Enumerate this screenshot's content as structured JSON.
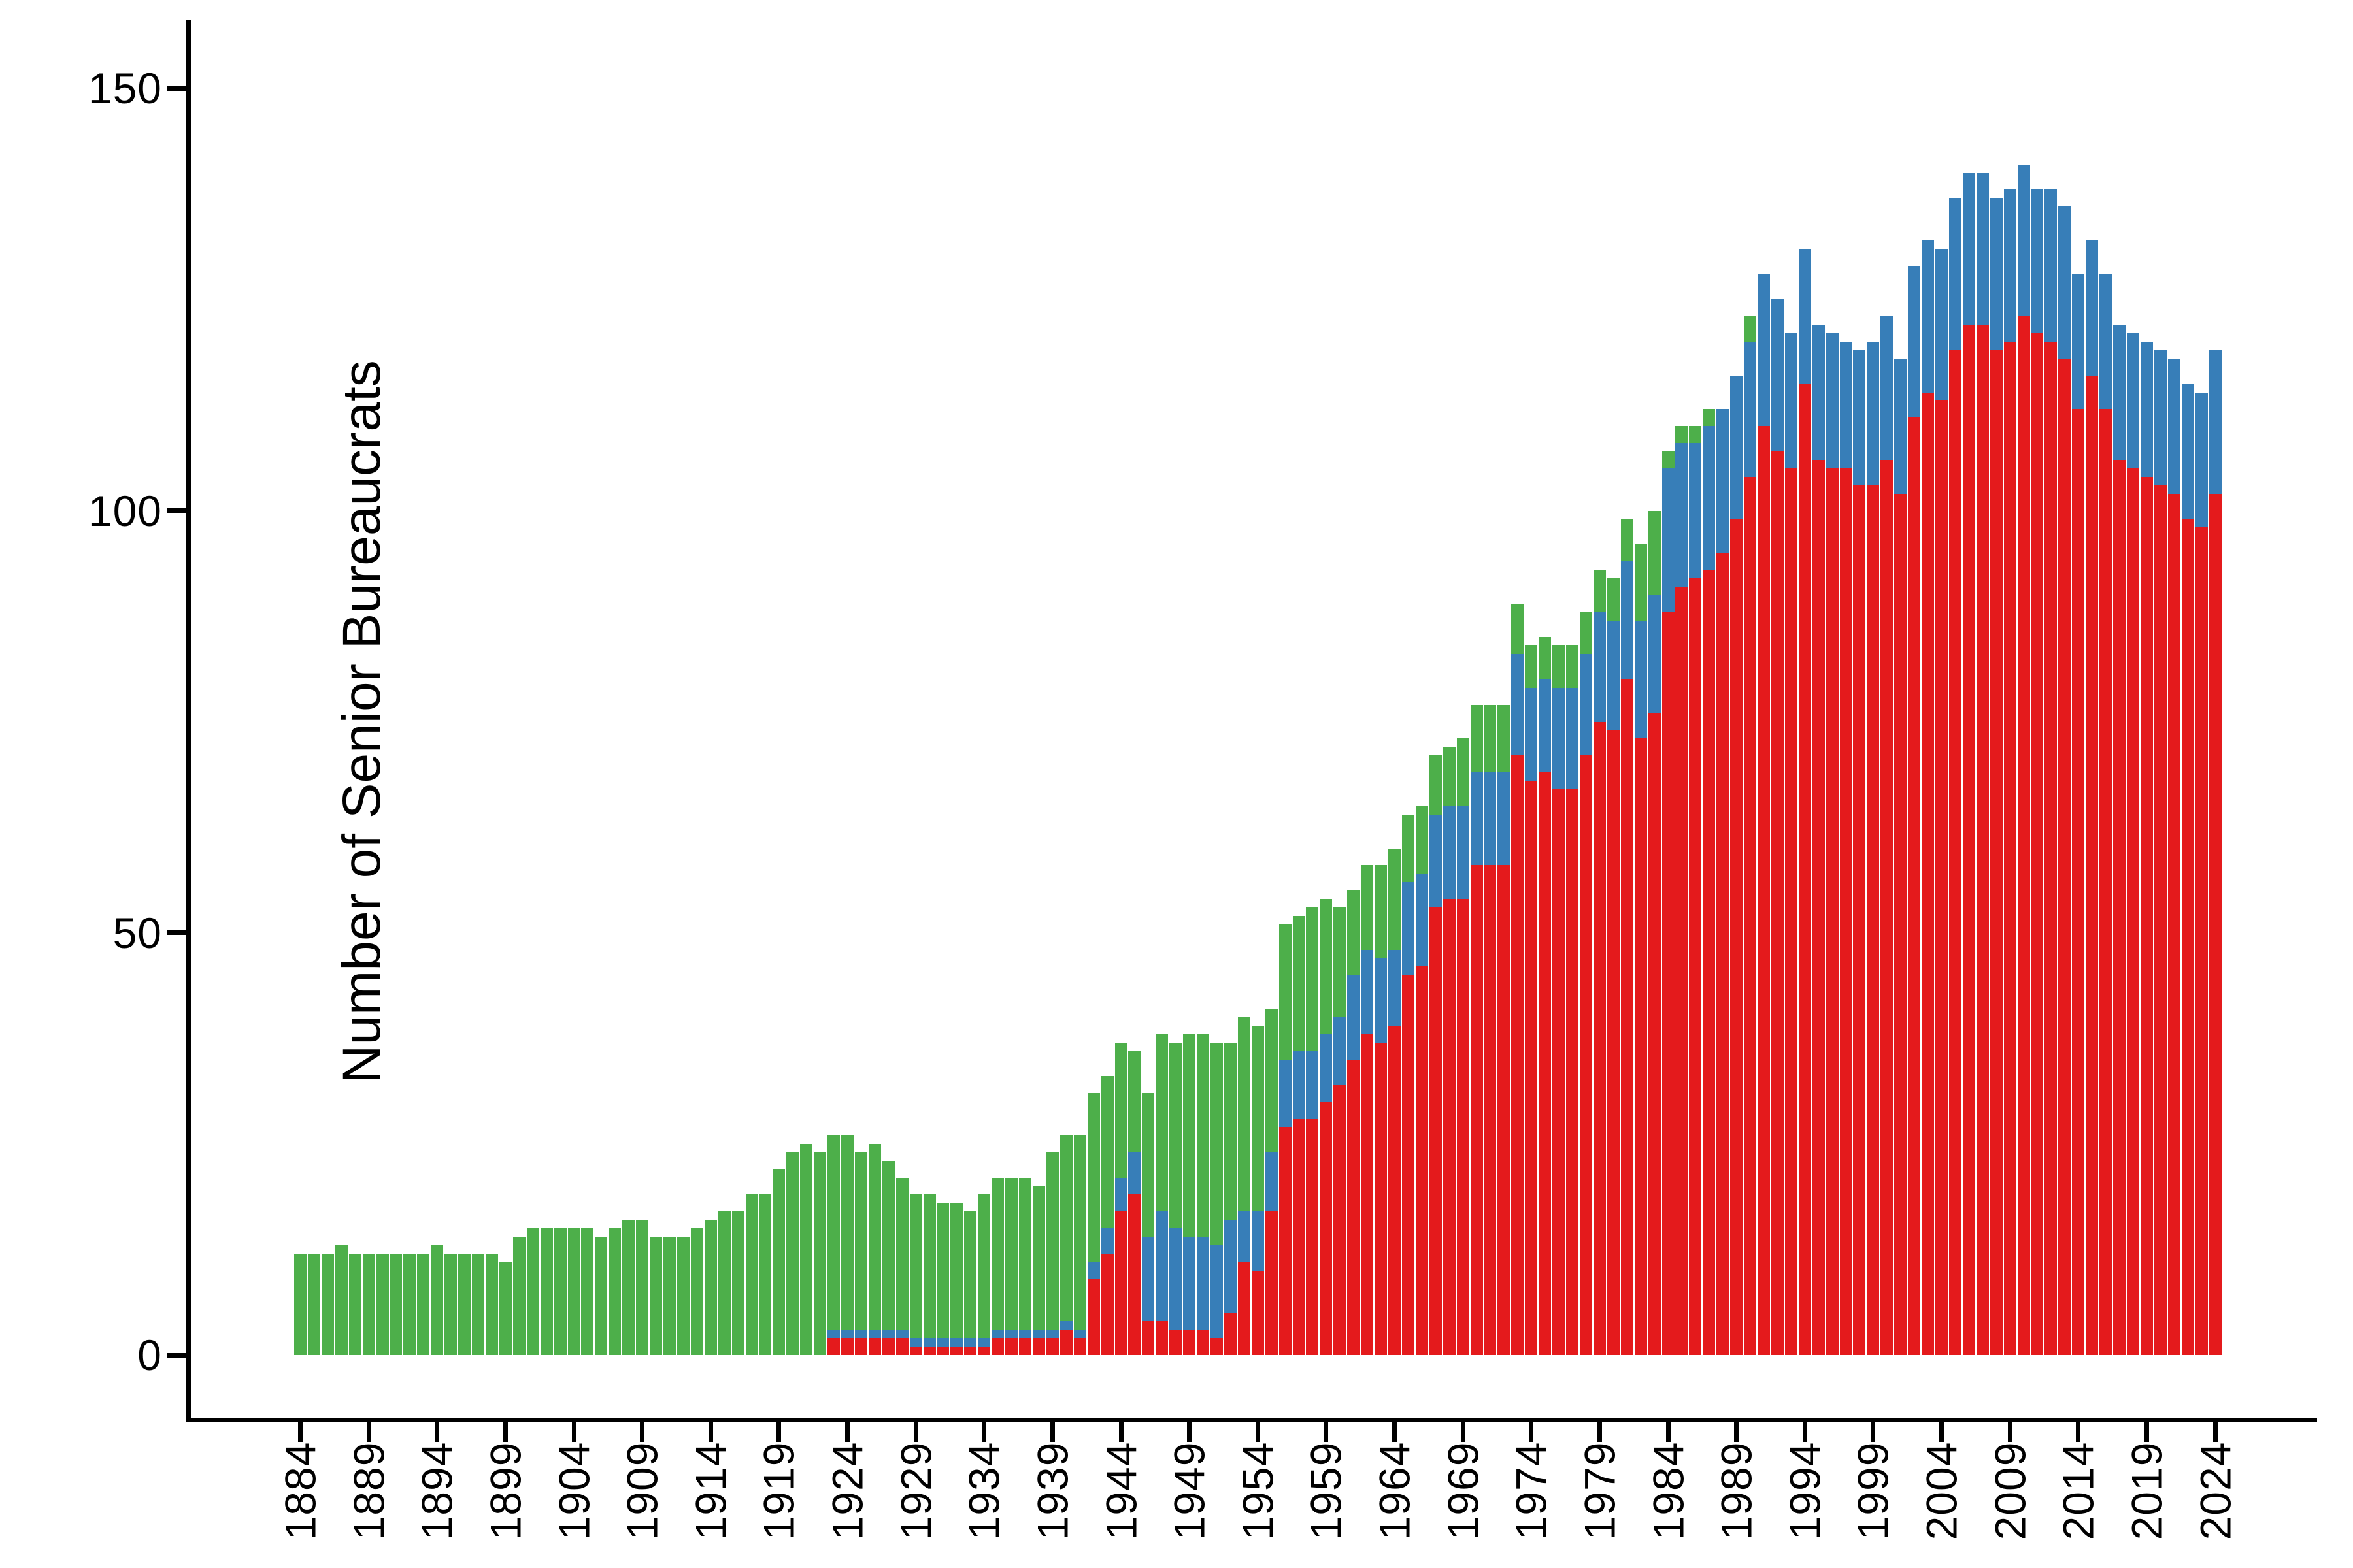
{
  "figure": {
    "background_color": "#ffffff",
    "axis_color": "#000000"
  },
  "y_axis": {
    "title": "Number of Senior Bureaucrats",
    "tick_labels": [
      "0",
      "50",
      "100",
      "150"
    ],
    "tick_values": [
      0,
      50,
      100,
      150
    ]
  },
  "x_axis": {
    "tick_labels": [
      "1884",
      "1889",
      "1894",
      "1899",
      "1904",
      "1909",
      "1914",
      "1919",
      "1924",
      "1929",
      "1934",
      "1939",
      "1944",
      "1949",
      "1954",
      "1959",
      "1964",
      "1969",
      "1974",
      "1979",
      "1984",
      "1989",
      "1994",
      "1999",
      "2004",
      "2009",
      "2014",
      "2019",
      "2024"
    ],
    "label_rotation_degrees": 90
  },
  "chart_data": {
    "type": "bar",
    "stacked": true,
    "title": "",
    "xlabel": "",
    "ylabel": "Number of Senior Bureaucrats",
    "ylim": [
      0,
      155
    ],
    "grid": "off",
    "legend_position": "none",
    "x_start_year": 1884,
    "x_end_year": 2024,
    "x": [
      1884,
      1885,
      1886,
      1887,
      1888,
      1889,
      1890,
      1891,
      1892,
      1893,
      1894,
      1895,
      1896,
      1897,
      1898,
      1899,
      1900,
      1901,
      1902,
      1903,
      1904,
      1905,
      1906,
      1907,
      1908,
      1909,
      1910,
      1911,
      1912,
      1913,
      1914,
      1915,
      1916,
      1917,
      1918,
      1919,
      1920,
      1921,
      1922,
      1923,
      1924,
      1925,
      1926,
      1927,
      1928,
      1929,
      1930,
      1931,
      1932,
      1933,
      1934,
      1935,
      1936,
      1937,
      1938,
      1939,
      1940,
      1941,
      1942,
      1943,
      1944,
      1945,
      1946,
      1947,
      1948,
      1949,
      1950,
      1951,
      1952,
      1953,
      1954,
      1955,
      1956,
      1957,
      1958,
      1959,
      1960,
      1961,
      1962,
      1963,
      1964,
      1965,
      1966,
      1967,
      1968,
      1969,
      1970,
      1971,
      1972,
      1973,
      1974,
      1975,
      1976,
      1977,
      1978,
      1979,
      1980,
      1981,
      1982,
      1983,
      1984,
      1985,
      1986,
      1987,
      1988,
      1989,
      1990,
      1991,
      1992,
      1993,
      1994,
      1995,
      1996,
      1997,
      1998,
      1999,
      2000,
      2001,
      2002,
      2003,
      2004,
      2005,
      2006,
      2007,
      2008,
      2009,
      2010,
      2011,
      2012,
      2013,
      2014,
      2015,
      2016,
      2017,
      2018,
      2019,
      2020,
      2021,
      2022,
      2023,
      2024
    ],
    "stack_order_bottom_to_top": [
      "series-red",
      "series-blue",
      "series-green"
    ],
    "series": [
      {
        "name": "series-red",
        "color": "#E41A1C",
        "values": [
          0,
          0,
          0,
          0,
          0,
          0,
          0,
          0,
          0,
          0,
          0,
          0,
          0,
          0,
          0,
          0,
          0,
          0,
          0,
          0,
          0,
          0,
          0,
          0,
          0,
          0,
          0,
          0,
          0,
          0,
          0,
          0,
          0,
          0,
          0,
          0,
          0,
          0,
          0,
          2,
          2,
          2,
          2,
          2,
          2,
          1,
          1,
          1,
          1,
          1,
          1,
          2,
          2,
          2,
          2,
          2,
          3,
          2,
          9,
          12,
          17,
          19,
          4,
          4,
          3,
          3,
          3,
          2,
          5,
          11,
          10,
          17,
          27,
          28,
          28,
          30,
          32,
          35,
          38,
          37,
          39,
          45,
          46,
          53,
          54,
          54,
          58,
          58,
          58,
          71,
          68,
          69,
          67,
          67,
          71,
          75,
          74,
          80,
          73,
          76,
          88,
          91,
          92,
          93,
          95,
          99,
          104,
          110,
          107,
          105,
          115,
          106,
          105,
          105,
          103,
          103,
          106,
          102,
          111,
          114,
          113,
          119,
          122,
          122,
          119,
          120,
          123,
          121,
          120,
          118,
          112,
          116,
          112,
          106,
          105,
          104,
          103,
          102,
          99,
          98,
          102
        ]
      },
      {
        "name": "series-blue",
        "color": "#377EB8",
        "values": [
          0,
          0,
          0,
          0,
          0,
          0,
          0,
          0,
          0,
          0,
          0,
          0,
          0,
          0,
          0,
          0,
          0,
          0,
          0,
          0,
          0,
          0,
          0,
          0,
          0,
          0,
          0,
          0,
          0,
          0,
          0,
          0,
          0,
          0,
          0,
          0,
          0,
          0,
          0,
          1,
          1,
          1,
          1,
          1,
          1,
          1,
          1,
          1,
          1,
          1,
          1,
          1,
          1,
          1,
          1,
          1,
          1,
          1,
          2,
          3,
          4,
          5,
          10,
          13,
          12,
          11,
          11,
          11,
          11,
          6,
          7,
          7,
          8,
          8,
          8,
          8,
          8,
          10,
          10,
          10,
          9,
          11,
          11,
          11,
          11,
          11,
          11,
          11,
          11,
          12,
          11,
          11,
          12,
          12,
          12,
          13,
          13,
          14,
          14,
          14,
          17,
          17,
          16,
          17,
          17,
          17,
          16,
          18,
          18,
          16,
          16,
          16,
          16,
          15,
          16,
          17,
          17,
          16,
          18,
          18,
          18,
          18,
          18,
          18,
          18,
          18,
          18,
          17,
          18,
          18,
          16,
          16,
          16,
          16,
          16,
          16,
          16,
          16,
          16,
          16,
          17
        ]
      },
      {
        "name": "series-green",
        "color": "#4DAF4A",
        "values": [
          12,
          12,
          12,
          13,
          12,
          12,
          12,
          12,
          12,
          12,
          13,
          12,
          12,
          12,
          12,
          11,
          14,
          15,
          15,
          15,
          15,
          15,
          14,
          15,
          16,
          16,
          14,
          14,
          14,
          15,
          16,
          17,
          17,
          19,
          19,
          22,
          24,
          25,
          24,
          23,
          23,
          21,
          22,
          20,
          18,
          17,
          17,
          16,
          16,
          15,
          17,
          18,
          18,
          18,
          17,
          21,
          22,
          23,
          20,
          18,
          16,
          12,
          17,
          21,
          22,
          24,
          24,
          24,
          21,
          23,
          22,
          17,
          16,
          16,
          17,
          16,
          13,
          10,
          10,
          11,
          12,
          8,
          8,
          7,
          7,
          8,
          8,
          8,
          8,
          6,
          5,
          5,
          5,
          5,
          5,
          5,
          5,
          5,
          9,
          10,
          2,
          2,
          2,
          2,
          0,
          0,
          3,
          0,
          0,
          0,
          0,
          0,
          0,
          0,
          0,
          0,
          0,
          0,
          0,
          0,
          0,
          0,
          0,
          0,
          0,
          0,
          0,
          0,
          0,
          0,
          0,
          0,
          0,
          0,
          0,
          0,
          0,
          0,
          0,
          0,
          0
        ]
      }
    ]
  }
}
